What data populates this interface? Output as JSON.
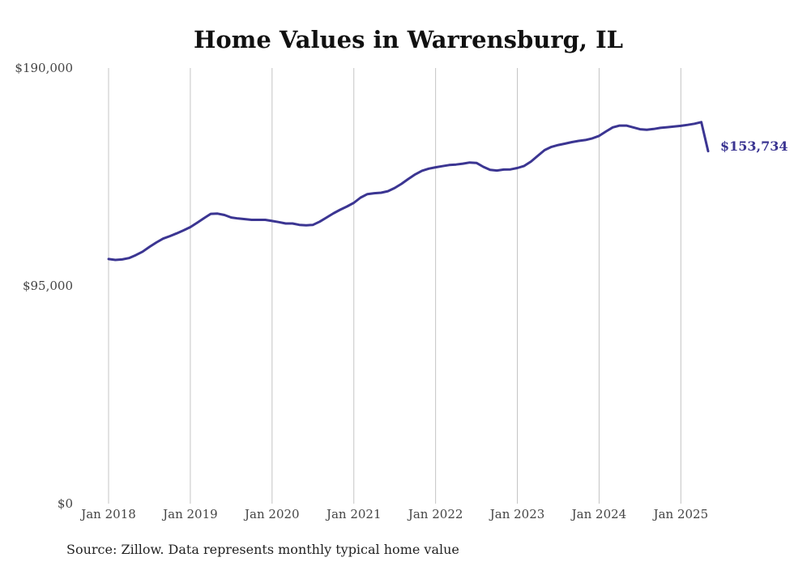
{
  "chart_data": {
    "type": "line",
    "title": "Home Values in Warrensburg, IL",
    "source": "Source: Zillow. Data represents monthly typical home value",
    "y_ticks": [
      {
        "value": 0,
        "label": "$0"
      },
      {
        "value": 95000,
        "label": "$95,000"
      },
      {
        "value": 190000,
        "label": "$190,000"
      }
    ],
    "ylim": [
      0,
      190000
    ],
    "x_ticks": [
      {
        "value": "2018-01",
        "label": "Jan 2018"
      },
      {
        "value": "2019-01",
        "label": "Jan 2019"
      },
      {
        "value": "2020-01",
        "label": "Jan 2020"
      },
      {
        "value": "2021-01",
        "label": "Jan 2021"
      },
      {
        "value": "2022-01",
        "label": "Jan 2022"
      },
      {
        "value": "2023-01",
        "label": "Jan 2023"
      },
      {
        "value": "2024-01",
        "label": "Jan 2024"
      },
      {
        "value": "2025-01",
        "label": "Jan 2025"
      }
    ],
    "xlim": [
      "2018-01",
      "2025-05"
    ],
    "grid": "vertical",
    "line_color": "#3b3592",
    "end_label": "$153,734",
    "series": [
      {
        "x": [
          "2018-01",
          "2018-02",
          "2018-03",
          "2018-04",
          "2018-05",
          "2018-06",
          "2018-07",
          "2018-08",
          "2018-09",
          "2018-10",
          "2018-11",
          "2018-12",
          "2019-01",
          "2019-02",
          "2019-03",
          "2019-04",
          "2019-05",
          "2019-06",
          "2019-07",
          "2019-08",
          "2019-09",
          "2019-10",
          "2019-11",
          "2019-12",
          "2020-01",
          "2020-02",
          "2020-03",
          "2020-04",
          "2020-05",
          "2020-06",
          "2020-07",
          "2020-08",
          "2020-09",
          "2020-10",
          "2020-11",
          "2020-12",
          "2021-01",
          "2021-02",
          "2021-03",
          "2021-04",
          "2021-05",
          "2021-06",
          "2021-07",
          "2021-08",
          "2021-09",
          "2021-10",
          "2021-11",
          "2021-12",
          "2022-01",
          "2022-02",
          "2022-03",
          "2022-04",
          "2022-05",
          "2022-06",
          "2022-07",
          "2022-08",
          "2022-09",
          "2022-10",
          "2022-11",
          "2022-12",
          "2023-01",
          "2023-02",
          "2023-03",
          "2023-04",
          "2023-05",
          "2023-06",
          "2023-07",
          "2023-08",
          "2023-09",
          "2023-10",
          "2023-11",
          "2023-12",
          "2024-01",
          "2024-02",
          "2024-03",
          "2024-04",
          "2024-05",
          "2024-06",
          "2024-07",
          "2024-08",
          "2024-09",
          "2024-10",
          "2024-11",
          "2024-12",
          "2025-01",
          "2025-02",
          "2025-03",
          "2025-04",
          "2025-05"
        ],
        "values": [
          106700,
          106300,
          106500,
          107100,
          108400,
          109900,
          112000,
          113900,
          115600,
          116700,
          117900,
          119200,
          120600,
          122500,
          124500,
          126400,
          126500,
          125900,
          124800,
          124400,
          124100,
          123800,
          123800,
          123800,
          123300,
          122800,
          122200,
          122200,
          121600,
          121400,
          121600,
          123000,
          124800,
          126600,
          128200,
          129600,
          131200,
          133500,
          135000,
          135400,
          135600,
          136300,
          137700,
          139500,
          141600,
          143600,
          145200,
          146100,
          146700,
          147200,
          147700,
          147900,
          148300,
          148800,
          148600,
          146900,
          145600,
          145300,
          145700,
          145800,
          146400,
          147300,
          149200,
          151700,
          154200,
          155600,
          156400,
          157000,
          157700,
          158200,
          158600,
          159300,
          160400,
          162300,
          164100,
          164900,
          164900,
          164100,
          163300,
          163100,
          163400,
          163900,
          164200,
          164500,
          164800,
          165200,
          165700,
          166400,
          153734
        ]
      }
    ]
  }
}
